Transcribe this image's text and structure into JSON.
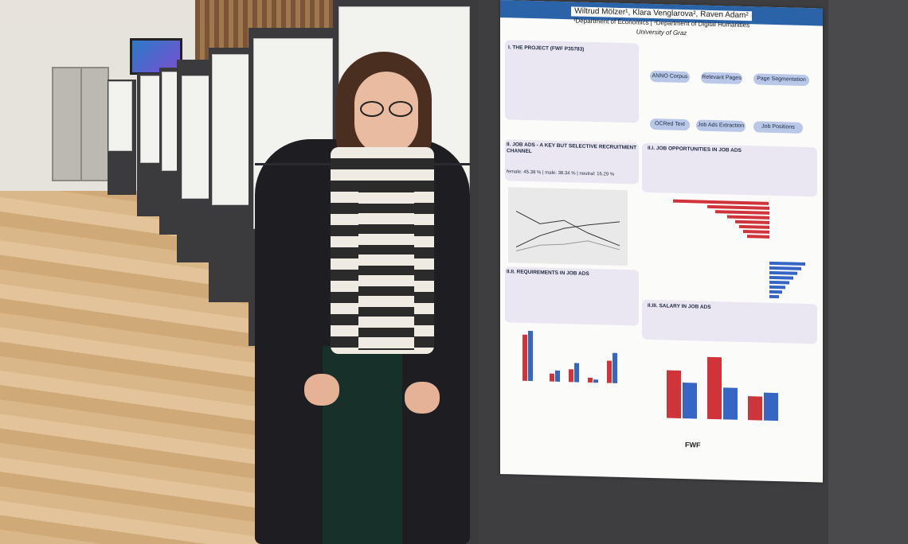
{
  "poster": {
    "authors": "Wiltrud Mölzer¹, Klara Venglarova², Raven Adam²",
    "affiliations": "¹Department of Economics | ²Department of Digital Humanities",
    "university": "University of Graz",
    "sections": {
      "project": "I. THE PROJECT (FWF P35783)",
      "job_ads": "II. JOB ADS - A KEY BUT SELECTIVE RECRUITMENT CHANNEL",
      "opportunities": "II.I. JOB OPPORTUNITIES IN JOB ADS",
      "requirements": "II.II. REQUIREMENTS IN JOB ADS",
      "salary": "II.III. SALARY IN JOB ADS"
    },
    "pipeline": [
      "ANNO Corpus",
      "Relevant Pages",
      "Page Segmentation",
      "OCRed Text",
      "Job Ads Extraction",
      "Job Positions"
    ],
    "gender_distribution": "female: 45.38 % | male: 38.34 % | neutral: 16.29 %",
    "fwf": "FWF"
  },
  "colors": {
    "poster_header": "#2a63a8",
    "bar_red": "#d0343b",
    "bar_blue": "#3566c4"
  }
}
